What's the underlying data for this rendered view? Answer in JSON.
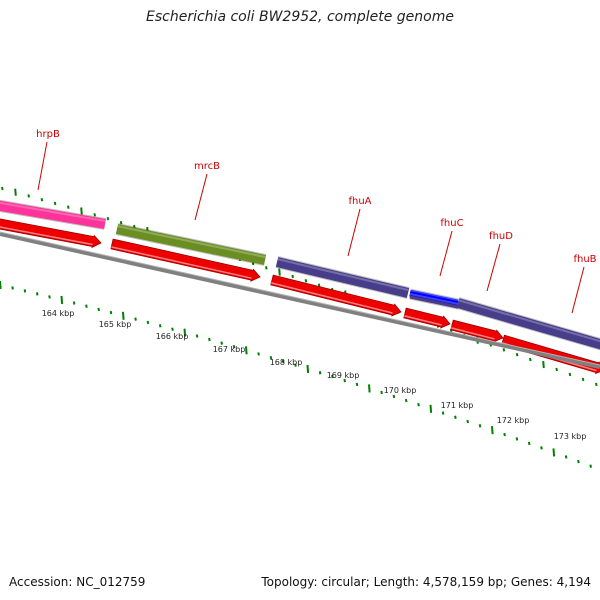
{
  "title": "Escherichia coli BW2952, complete genome",
  "accession": "Accession: NC_012759",
  "summary": "Topology: circular; Length: 4,578,159 bp; Genes: 4,194",
  "colors": {
    "label": "#cc0000",
    "cds": "#ee0000",
    "backbone": "#808080",
    "tick": "#008000",
    "hrpB": "#ff3399",
    "mrcB": "#6b8e23",
    "fhu": "#483d8b",
    "fhuC": "#0000ff"
  },
  "genes": [
    {
      "name": "hrpB",
      "color_key": "hrpB"
    },
    {
      "name": "mrcB",
      "color_key": "mrcB"
    },
    {
      "name": "fhuA",
      "color_key": "fhu"
    },
    {
      "name": "fhuC",
      "color_key": "fhuC"
    },
    {
      "name": "fhuD",
      "color_key": "fhu"
    },
    {
      "name": "fhuB",
      "color_key": "fhu"
    }
  ],
  "scale_labels": [
    "164 kbp",
    "165 kbp",
    "166 kbp",
    "167 kbp",
    "168 kbp",
    "169 kbp",
    "170 kbp",
    "171 kbp",
    "172 kbp",
    "173 kbp"
  ]
}
